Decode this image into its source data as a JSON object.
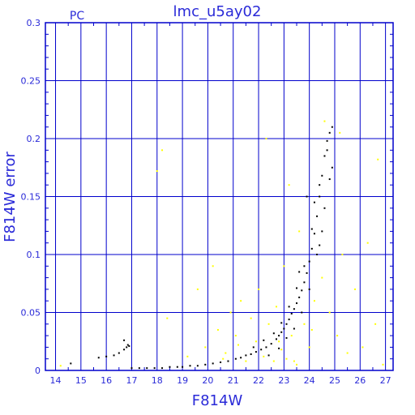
{
  "chart_data": {
    "type": "scatter",
    "title": "lmc_u5ay02",
    "subtitle": "PC",
    "xlabel": "F814W",
    "ylabel": "F814W error",
    "xlim": [
      13.6,
      27.3
    ],
    "ylim": [
      0,
      0.3
    ],
    "x_ticks": [
      "14",
      "15",
      "16",
      "17",
      "18",
      "19",
      "20",
      "21",
      "22",
      "23",
      "24",
      "25",
      "26",
      "27"
    ],
    "y_ticks": [
      "0",
      "0.05",
      "0.1",
      "0.15",
      "0.2",
      "0.25",
      "0.3"
    ],
    "grid": true,
    "colors": {
      "axis": "#0000cc",
      "label": "#2a2ad8",
      "series_primary": "#000000",
      "series_secondary": "#ffff00"
    },
    "series": [
      {
        "color": "#000000",
        "points": [
          [
            14.6,
            0.006
          ],
          [
            15.7,
            0.011
          ],
          [
            16.0,
            0.012
          ],
          [
            16.3,
            0.013
          ],
          [
            16.5,
            0.015
          ],
          [
            16.7,
            0.018
          ],
          [
            16.8,
            0.02
          ],
          [
            16.85,
            0.022
          ],
          [
            16.9,
            0.021
          ],
          [
            16.7,
            0.026
          ],
          [
            17.0,
            0.002
          ],
          [
            17.3,
            0.002
          ],
          [
            17.6,
            0.002
          ],
          [
            17.9,
            0.002
          ],
          [
            18.2,
            0.002
          ],
          [
            18.5,
            0.003
          ],
          [
            18.8,
            0.003
          ],
          [
            19.0,
            0.003
          ],
          [
            19.3,
            0.004
          ],
          [
            19.6,
            0.004
          ],
          [
            19.9,
            0.005
          ],
          [
            20.2,
            0.006
          ],
          [
            20.5,
            0.007
          ],
          [
            20.8,
            0.008
          ],
          [
            21.1,
            0.01
          ],
          [
            21.3,
            0.011
          ],
          [
            21.5,
            0.013
          ],
          [
            21.7,
            0.014
          ],
          [
            21.9,
            0.016
          ],
          [
            22.1,
            0.018
          ],
          [
            22.3,
            0.02
          ],
          [
            22.5,
            0.023
          ],
          [
            22.7,
            0.027
          ],
          [
            22.8,
            0.03
          ],
          [
            22.9,
            0.033
          ],
          [
            23.0,
            0.036
          ],
          [
            23.1,
            0.04
          ],
          [
            23.2,
            0.044
          ],
          [
            23.3,
            0.049
          ],
          [
            23.4,
            0.053
          ],
          [
            23.5,
            0.058
          ],
          [
            23.6,
            0.063
          ],
          [
            23.7,
            0.069
          ],
          [
            23.8,
            0.076
          ],
          [
            23.9,
            0.084
          ],
          [
            24.0,
            0.094
          ],
          [
            24.1,
            0.105
          ],
          [
            24.2,
            0.118
          ],
          [
            24.3,
            0.133
          ],
          [
            24.4,
            0.15
          ],
          [
            24.5,
            0.168
          ],
          [
            24.6,
            0.185
          ],
          [
            24.7,
            0.198
          ],
          [
            24.8,
            0.205
          ],
          [
            24.9,
            0.21
          ],
          [
            22.6,
            0.032
          ],
          [
            22.9,
            0.041
          ],
          [
            23.2,
            0.055
          ],
          [
            23.5,
            0.071
          ],
          [
            23.8,
            0.09
          ],
          [
            24.1,
            0.122
          ],
          [
            24.4,
            0.16
          ],
          [
            24.7,
            0.19
          ],
          [
            22.4,
            0.013
          ],
          [
            22.8,
            0.019
          ],
          [
            23.1,
            0.028
          ],
          [
            23.4,
            0.036
          ],
          [
            23.7,
            0.05
          ],
          [
            24.0,
            0.07
          ],
          [
            24.3,
            0.1
          ],
          [
            24.6,
            0.14
          ],
          [
            24.9,
            0.175
          ],
          [
            23.9,
            0.15
          ],
          [
            24.2,
            0.145
          ],
          [
            24.5,
            0.12
          ],
          [
            24.8,
            0.165
          ],
          [
            21.8,
            0.02
          ],
          [
            22.2,
            0.026
          ],
          [
            23.6,
            0.085
          ],
          [
            24.4,
            0.108
          ]
        ]
      },
      {
        "color": "#ffff00",
        "points": [
          [
            14.2,
            0.004
          ],
          [
            18.0,
            0.172
          ],
          [
            18.2,
            0.19
          ],
          [
            18.4,
            0.045
          ],
          [
            19.2,
            0.012
          ],
          [
            19.6,
            0.07
          ],
          [
            19.9,
            0.02
          ],
          [
            20.2,
            0.09
          ],
          [
            20.4,
            0.035
          ],
          [
            20.7,
            0.015
          ],
          [
            20.9,
            0.05
          ],
          [
            21.1,
            0.03
          ],
          [
            21.3,
            0.06
          ],
          [
            21.5,
            0.008
          ],
          [
            21.7,
            0.045
          ],
          [
            21.9,
            0.025
          ],
          [
            22.0,
            0.07
          ],
          [
            22.2,
            0.012
          ],
          [
            22.4,
            0.04
          ],
          [
            22.6,
            0.008
          ],
          [
            22.7,
            0.055
          ],
          [
            22.9,
            0.018
          ],
          [
            23.0,
            0.09
          ],
          [
            23.1,
            0.01
          ],
          [
            23.3,
            0.03
          ],
          [
            23.5,
            0.005
          ],
          [
            23.6,
            0.12
          ],
          [
            23.8,
            0.04
          ],
          [
            24.0,
            0.02
          ],
          [
            24.2,
            0.06
          ],
          [
            24.5,
            0.08
          ],
          [
            24.8,
            0.05
          ],
          [
            25.1,
            0.03
          ],
          [
            25.3,
            0.1
          ],
          [
            25.5,
            0.015
          ],
          [
            25.8,
            0.07
          ],
          [
            26.1,
            0.02
          ],
          [
            26.3,
            0.11
          ],
          [
            26.6,
            0.04
          ],
          [
            26.9,
            0.005
          ],
          [
            22.3,
            0.2
          ],
          [
            23.2,
            0.16
          ],
          [
            24.6,
            0.215
          ],
          [
            25.2,
            0.205
          ],
          [
            26.7,
            0.182
          ],
          [
            21.2,
            0.022
          ],
          [
            20.6,
            0.01
          ],
          [
            22.8,
            0.025
          ],
          [
            23.4,
            0.008
          ],
          [
            24.1,
            0.035
          ]
        ]
      }
    ]
  }
}
